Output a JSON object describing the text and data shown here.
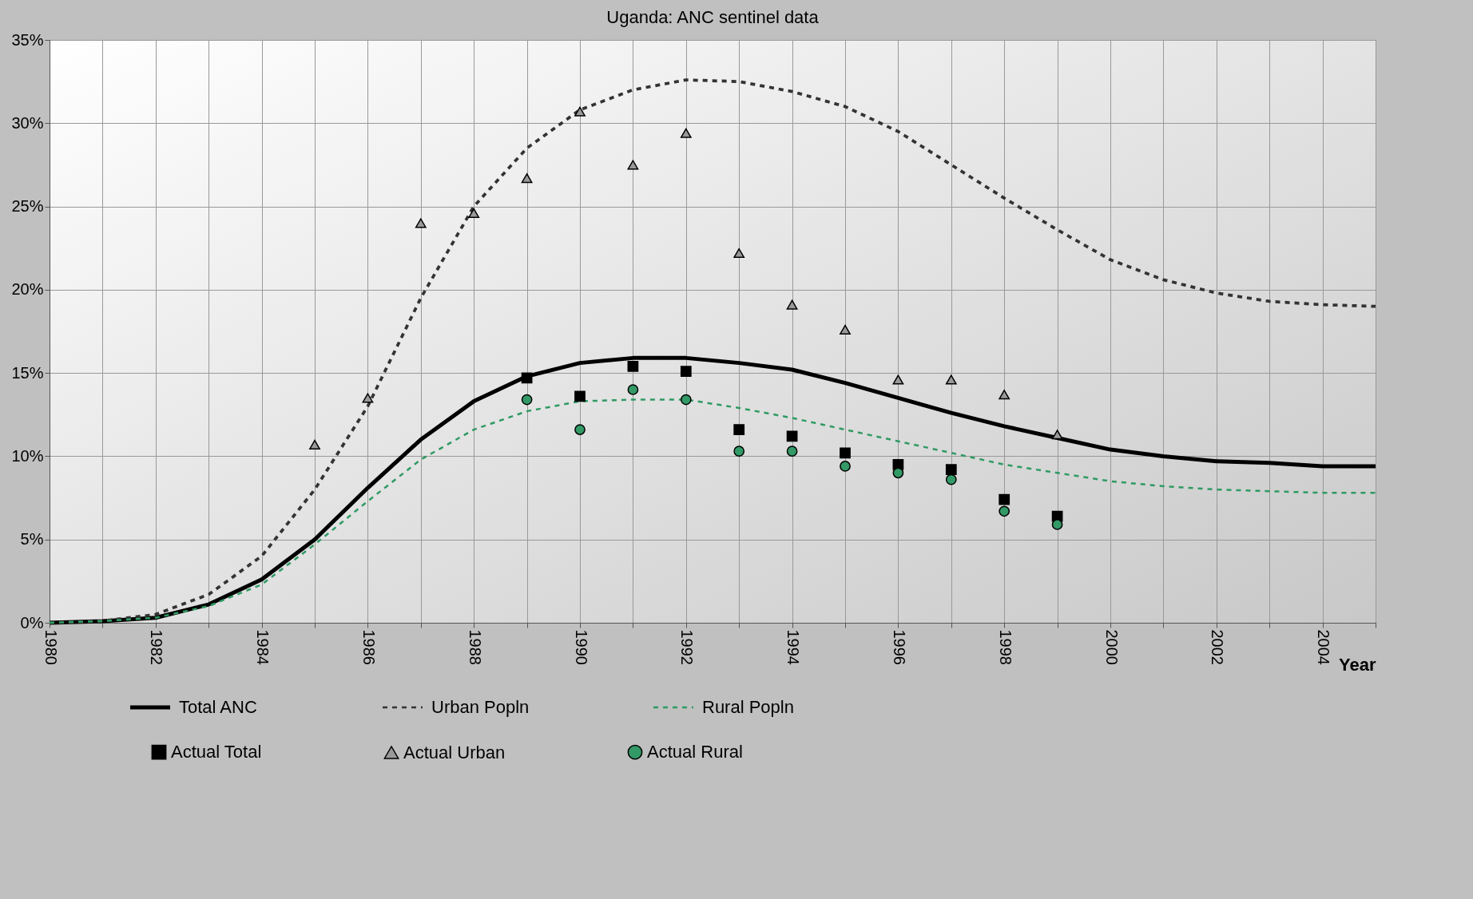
{
  "chart_data": {
    "type": "line",
    "title": "Uganda: ANC sentinel data",
    "xlabel": "Year",
    "x": [
      1980,
      1981,
      1982,
      1983,
      1984,
      1985,
      1986,
      1987,
      1988,
      1989,
      1990,
      1991,
      1992,
      1993,
      1994,
      1995,
      1996,
      1997,
      1998,
      1999,
      2000,
      2001,
      2002,
      2003,
      2004,
      2005
    ],
    "xlim": [
      1980,
      2005
    ],
    "ylim": [
      0,
      35
    ],
    "xticks": [
      1980,
      {
        "value": 1981,
        "label": null
      },
      1982,
      {
        "value": 1983,
        "label": null
      },
      1984,
      {
        "value": 1985,
        "label": null
      },
      1986,
      {
        "value": 1987,
        "label": null
      },
      1988,
      {
        "value": 1989,
        "label": null
      },
      1990,
      {
        "value": 1991,
        "label": null
      },
      1992,
      {
        "value": 1993,
        "label": null
      },
      1994,
      {
        "value": 1995,
        "label": null
      },
      1996,
      {
        "value": 1997,
        "label": null
      },
      1998,
      {
        "value": 1999,
        "label": null
      },
      2000,
      {
        "value": 2001,
        "label": null
      },
      2002,
      {
        "value": 2003,
        "label": null
      },
      2004,
      {
        "value": 2005,
        "label": null
      }
    ],
    "yticks": [
      {
        "value": 0,
        "label": "0%"
      },
      {
        "value": 5,
        "label": "5%"
      },
      {
        "value": 10,
        "label": "10%"
      },
      {
        "value": 15,
        "label": "15%"
      },
      {
        "value": 20,
        "label": "20%"
      },
      {
        "value": 25,
        "label": "25%"
      },
      {
        "value": 30,
        "label": "30%"
      },
      {
        "value": 35,
        "label": "35%"
      }
    ],
    "grid": true,
    "legend": "bottom",
    "series": [
      {
        "name": "Total ANC",
        "type": "line",
        "line_style": "solid",
        "color": "#000000",
        "values": [
          0,
          0.1,
          0.3,
          1.1,
          2.6,
          5.0,
          8.1,
          11.0,
          13.3,
          14.8,
          15.6,
          15.9,
          15.9,
          15.6,
          15.2,
          14.4,
          13.5,
          12.6,
          11.8,
          11.1,
          10.4,
          10.0,
          9.7,
          9.6,
          9.4,
          9.4
        ]
      },
      {
        "name": "Urban Popln",
        "type": "line",
        "line_style": "dashed",
        "color": "#333333",
        "values": [
          0,
          0.1,
          0.5,
          1.7,
          4.0,
          8.0,
          13.0,
          19.5,
          25.0,
          28.5,
          30.8,
          32.0,
          32.6,
          32.5,
          31.9,
          31.0,
          29.5,
          27.5,
          25.5,
          23.6,
          21.8,
          20.6,
          19.8,
          19.3,
          19.1,
          19.0
        ]
      },
      {
        "name": "Rural Popln",
        "type": "line",
        "line_style": "dashed",
        "color": "#2e9a63",
        "values": [
          0,
          0.1,
          0.3,
          1.0,
          2.3,
          4.7,
          7.3,
          9.8,
          11.6,
          12.7,
          13.3,
          13.4,
          13.4,
          12.9,
          12.3,
          11.6,
          10.9,
          10.2,
          9.5,
          9.0,
          8.5,
          8.2,
          8.0,
          7.9,
          7.8,
          7.8
        ]
      },
      {
        "name": "Actual Total",
        "type": "scatter",
        "marker": "square",
        "color": "#000000",
        "x": [
          1989,
          1990,
          1991,
          1992,
          1993,
          1994,
          1995,
          1996,
          1997,
          1998,
          1999
        ],
        "values": [
          14.7,
          13.6,
          15.4,
          15.1,
          11.6,
          11.2,
          10.2,
          9.5,
          9.2,
          7.4,
          6.4
        ]
      },
      {
        "name": "Actual Urban",
        "type": "scatter",
        "marker": "triangle",
        "color": "#999999",
        "x": [
          1985,
          1986,
          1987,
          1988,
          1989,
          1990,
          1991,
          1992,
          1993,
          1994,
          1995,
          1996,
          1997,
          1998,
          1999
        ],
        "values": [
          10.7,
          13.5,
          24.0,
          24.6,
          26.7,
          30.7,
          27.5,
          29.4,
          22.2,
          19.1,
          17.6,
          14.6,
          14.6,
          13.7,
          11.3
        ]
      },
      {
        "name": "Actual Rural",
        "type": "scatter",
        "marker": "circle",
        "color": "#339966",
        "x": [
          1989,
          1990,
          1991,
          1992,
          1993,
          1994,
          1995,
          1996,
          1997,
          1998,
          1999
        ],
        "values": [
          13.4,
          11.6,
          14.0,
          13.4,
          10.3,
          10.3,
          9.4,
          9.0,
          8.6,
          6.7,
          5.9
        ]
      }
    ]
  }
}
